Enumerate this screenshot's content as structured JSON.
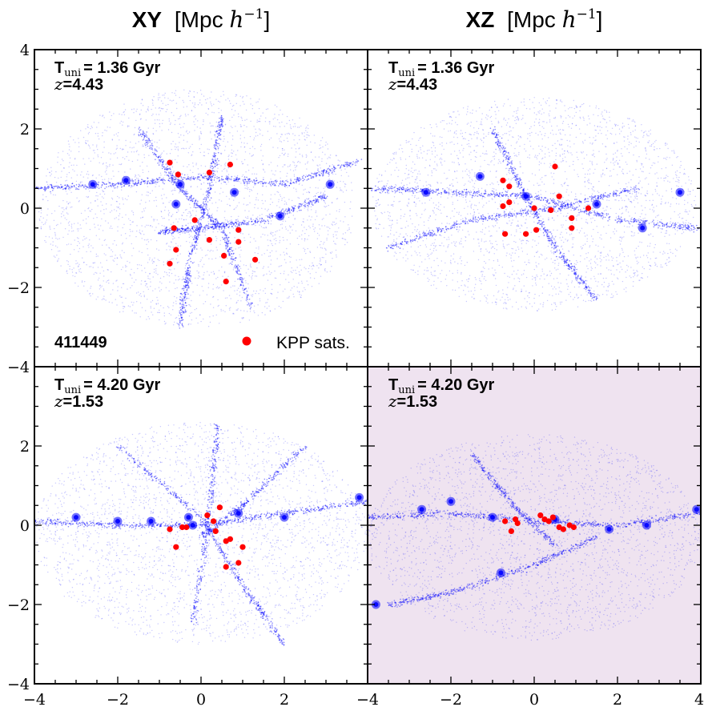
{
  "titles": {
    "xy": {
      "bold": "XY",
      "unit": "[Mpc ",
      "h": "h",
      "sup": "−1",
      "close": "]"
    },
    "xz": {
      "bold": "XZ",
      "unit": "[Mpc ",
      "h": "h",
      "sup": "−1",
      "close": "]"
    }
  },
  "tick_labels": {
    "x": [
      "−4",
      "−2",
      "0",
      "2",
      "−4",
      "−2",
      "0",
      "2",
      "4"
    ],
    "y": [
      "4",
      "2",
      "0",
      "−2",
      "−4",
      "2",
      "0",
      "−2",
      "−4"
    ]
  },
  "halo_id": "411449",
  "legend": {
    "label": "KPP sats."
  },
  "colors": {
    "particles": "#0000ff",
    "satellites": "#ff0000",
    "highlight_bg": "#efe3f0"
  },
  "chart_data": [
    {
      "type": "scatter",
      "panel": "top-left",
      "projection": "XY",
      "annotation": {
        "time_label": "T",
        "time_sub": "uni",
        "time_value": "= 1.36 Gyr",
        "z_label": "z",
        "z_value": "=4.43"
      },
      "xlim": [
        -4,
        4
      ],
      "ylim": [
        -4,
        4
      ],
      "background": "white",
      "particles": {
        "shape": "ellipse",
        "center": [
          -0.1,
          0.0
        ],
        "radii": [
          3.8,
          3.0
        ],
        "filaments": [
          [
            [
              -4.0,
              0.5
            ],
            [
              -2.0,
              0.6
            ],
            [
              0.0,
              0.8
            ],
            [
              2.0,
              0.6
            ],
            [
              3.8,
              1.2
            ]
          ],
          [
            [
              -1.0,
              -0.6
            ],
            [
              0.0,
              -0.5
            ],
            [
              1.5,
              -0.3
            ],
            [
              3.0,
              0.3
            ]
          ],
          [
            [
              -1.5,
              2.0
            ],
            [
              -0.5,
              0.5
            ],
            [
              0.5,
              -0.5
            ],
            [
              1.2,
              -2.5
            ]
          ],
          [
            [
              0.5,
              2.3
            ],
            [
              0.2,
              0.5
            ],
            [
              -0.3,
              -1.5
            ],
            [
              -0.5,
              -3.0
            ]
          ]
        ],
        "knots": [
          [
            -2.6,
            0.6
          ],
          [
            -1.8,
            0.7
          ],
          [
            -0.5,
            0.6
          ],
          [
            0.8,
            0.4
          ],
          [
            3.1,
            0.6
          ],
          [
            1.9,
            -0.2
          ],
          [
            -0.6,
            0.1
          ]
        ]
      },
      "satellites_x": [
        -0.75,
        -0.55,
        0.2,
        0.7,
        -0.15,
        -0.65,
        0.2,
        0.9,
        -0.6,
        0.9,
        0.55,
        1.3,
        -0.75,
        0.6
      ],
      "satellites_y": [
        1.15,
        0.85,
        0.9,
        1.1,
        -0.3,
        -0.5,
        -0.8,
        -0.55,
        -1.05,
        -0.85,
        -1.2,
        -1.3,
        -1.4,
        -1.85
      ]
    },
    {
      "type": "scatter",
      "panel": "top-right",
      "projection": "XZ",
      "annotation": {
        "time_label": "T",
        "time_sub": "uni",
        "time_value": "= 1.36 Gyr",
        "z_label": "z",
        "z_value": "=4.43"
      },
      "xlim": [
        -4,
        4
      ],
      "ylim": [
        -4,
        4
      ],
      "background": "white",
      "particles": {
        "shape": "ellipse",
        "center": [
          0.0,
          0.1
        ],
        "radii": [
          3.9,
          2.7
        ],
        "filaments": [
          [
            [
              -3.9,
              0.5
            ],
            [
              -2.0,
              0.4
            ],
            [
              0.0,
              0.3
            ],
            [
              2.0,
              -0.3
            ],
            [
              3.9,
              -0.5
            ]
          ],
          [
            [
              -3.5,
              -1.0
            ],
            [
              -1.5,
              -0.3
            ],
            [
              0.5,
              0.0
            ],
            [
              2.5,
              0.5
            ]
          ],
          [
            [
              -1.0,
              2.0
            ],
            [
              -0.3,
              0.5
            ],
            [
              0.5,
              -1.0
            ],
            [
              1.5,
              -2.3
            ]
          ]
        ],
        "knots": [
          [
            -2.6,
            0.4
          ],
          [
            -1.3,
            0.8
          ],
          [
            -0.2,
            0.3
          ],
          [
            1.5,
            0.1
          ],
          [
            2.6,
            -0.5
          ],
          [
            3.5,
            0.4
          ]
        ]
      },
      "satellites_x": [
        -0.75,
        -0.6,
        0.5,
        0.6,
        -0.75,
        -0.6,
        0.0,
        0.4,
        0.9,
        1.3,
        -0.7,
        -0.2,
        0.05,
        0.9
      ],
      "satellites_y": [
        0.7,
        0.55,
        1.05,
        0.3,
        0.05,
        0.15,
        0.0,
        -0.05,
        -0.25,
        0.0,
        -0.65,
        -0.65,
        -0.55,
        -0.5
      ]
    },
    {
      "type": "scatter",
      "panel": "bottom-left",
      "projection": "XY",
      "annotation": {
        "time_label": "T",
        "time_sub": "uni",
        "time_value": "= 4.20 Gyr",
        "z_label": "z",
        "z_value": "=1.53"
      },
      "xlim": [
        -4,
        4
      ],
      "ylim": [
        -4,
        4
      ],
      "background": "white",
      "particles": {
        "shape": "ellipse",
        "center": [
          0.0,
          -0.2
        ],
        "radii": [
          4.0,
          2.8
        ],
        "filaments": [
          [
            [
              -4.0,
              0.1
            ],
            [
              -2.0,
              0.0
            ],
            [
              0.0,
              0.0
            ],
            [
              2.0,
              0.3
            ],
            [
              4.0,
              0.6
            ]
          ],
          [
            [
              -2.0,
              2.0
            ],
            [
              0.0,
              0.2
            ],
            [
              1.0,
              -1.5
            ],
            [
              2.0,
              -3.0
            ]
          ],
          [
            [
              2.5,
              2.0
            ],
            [
              1.0,
              0.5
            ],
            [
              0.0,
              -0.3
            ]
          ],
          [
            [
              0.4,
              2.5
            ],
            [
              0.2,
              0.3
            ],
            [
              -0.2,
              -2.5
            ]
          ]
        ],
        "knots": [
          [
            -3.0,
            0.2
          ],
          [
            -2.0,
            0.1
          ],
          [
            -1.2,
            0.1
          ],
          [
            -0.2,
            0.0
          ],
          [
            2.0,
            0.2
          ],
          [
            0.9,
            0.3
          ],
          [
            3.8,
            0.7
          ],
          [
            -0.3,
            0.2
          ]
        ]
      },
      "satellites_x": [
        0.45,
        0.15,
        0.3,
        -0.45,
        -0.35,
        -0.75,
        0.35,
        -0.6,
        0.7,
        0.6,
        1.0,
        0.9,
        0.6
      ],
      "satellites_y": [
        0.45,
        0.25,
        0.1,
        -0.05,
        -0.05,
        -0.1,
        -0.15,
        -0.55,
        -0.35,
        -0.4,
        -0.55,
        -0.95,
        -1.05
      ]
    },
    {
      "type": "scatter",
      "panel": "bottom-right",
      "projection": "XZ",
      "annotation": {
        "time_label": "T",
        "time_sub": "uni",
        "time_value": "= 4.20 Gyr",
        "z_label": "z",
        "z_value": "=1.53"
      },
      "xlim": [
        -4,
        4
      ],
      "ylim": [
        -4,
        4
      ],
      "background": "highlighted",
      "particles": {
        "shape": "ellipse",
        "center": [
          0.0,
          -0.3
        ],
        "radii": [
          4.0,
          2.6
        ],
        "filaments": [
          [
            [
              -4.0,
              0.2
            ],
            [
              -2.0,
              0.3
            ],
            [
              0.0,
              0.1
            ],
            [
              2.0,
              0.0
            ],
            [
              4.0,
              0.3
            ]
          ],
          [
            [
              -3.5,
              -2.0
            ],
            [
              -2.0,
              -1.7
            ],
            [
              0.0,
              -1.0
            ],
            [
              1.5,
              -0.3
            ]
          ],
          [
            [
              -1.5,
              1.8
            ],
            [
              -0.5,
              0.5
            ],
            [
              0.5,
              -0.5
            ]
          ]
        ],
        "knots": [
          [
            -2.7,
            0.4
          ],
          [
            -2.0,
            0.6
          ],
          [
            -1.0,
            0.2
          ],
          [
            0.5,
            0.15
          ],
          [
            2.7,
            0.0
          ],
          [
            1.8,
            -0.1
          ],
          [
            3.9,
            0.4
          ],
          [
            -3.8,
            -2.0
          ],
          [
            -0.8,
            -1.2
          ]
        ]
      },
      "satellites_x": [
        -0.7,
        -0.45,
        -0.4,
        -0.55,
        0.15,
        0.25,
        0.35,
        0.45,
        0.6,
        0.7,
        0.85,
        0.95
      ],
      "satellites_y": [
        0.1,
        0.15,
        0.05,
        -0.15,
        0.25,
        0.15,
        0.1,
        0.2,
        -0.05,
        -0.1,
        0.0,
        -0.05
      ]
    }
  ]
}
